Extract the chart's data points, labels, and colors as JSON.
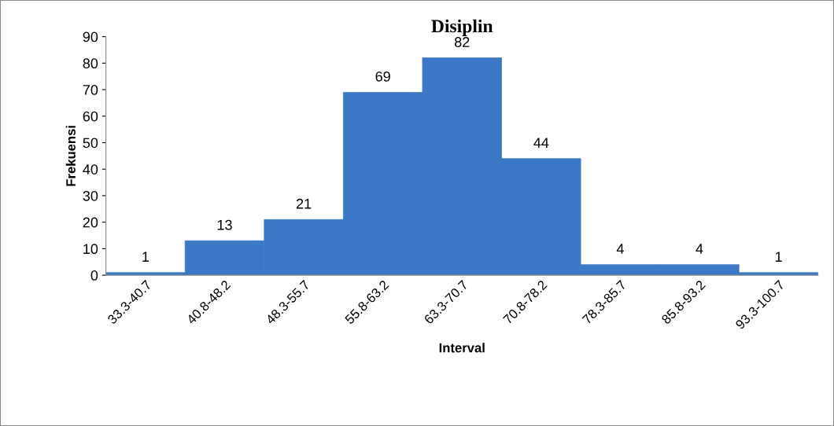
{
  "chart_data": {
    "type": "bar",
    "title": "Disiplin",
    "xlabel": "Interval",
    "ylabel": "Frekuensi",
    "categories": [
      "33.3-40.7",
      "40.8-48.2",
      "48.3-55.7",
      "55.8-63.2",
      "63.3-70.7",
      "70.8-78.2",
      "78.3-85.7",
      "85.8-93.2",
      "93.3-100.7"
    ],
    "values": [
      1,
      13,
      21,
      69,
      82,
      44,
      4,
      4,
      1
    ],
    "color": "#3b78c6",
    "ylim": [
      0,
      90
    ],
    "yticks": [
      0,
      10,
      20,
      30,
      40,
      50,
      60,
      70,
      80,
      90
    ],
    "grid": false,
    "data_labels": true
  }
}
